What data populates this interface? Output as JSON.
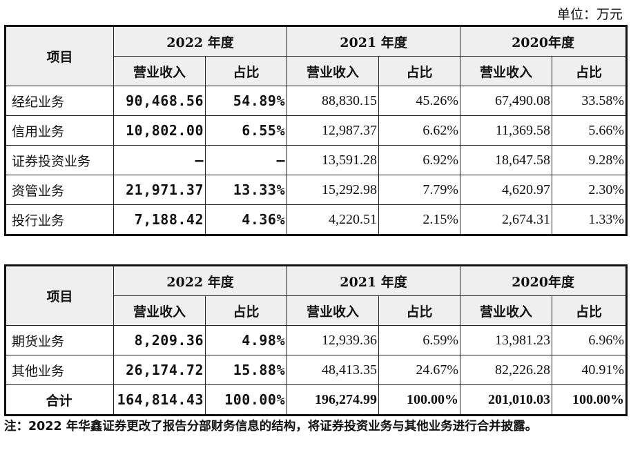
{
  "unit_label": "单位：万元",
  "header": {
    "item": "项目",
    "years": [
      "2022 年度",
      "2021 年度",
      "2020年度"
    ],
    "revenue": "营业收入",
    "ratio": "占比"
  },
  "table1_rows": [
    {
      "item": "经纪业务",
      "v": [
        "90,468.56",
        "54.89%",
        "88,830.15",
        "45.26%",
        "67,490.08",
        "33.58%"
      ]
    },
    {
      "item": "信用业务",
      "v": [
        "10,802.00",
        "6.55%",
        "12,987.37",
        "6.62%",
        "11,369.58",
        "5.66%"
      ]
    },
    {
      "item": "证券投资业务",
      "v": [
        "–",
        "–",
        "13,591.28",
        "6.92%",
        "18,647.58",
        "9.28%"
      ]
    },
    {
      "item": "资管业务",
      "v": [
        "21,971.37",
        "13.33%",
        "15,292.98",
        "7.79%",
        "4,620.97",
        "2.30%"
      ]
    },
    {
      "item": "投行业务",
      "v": [
        "7,188.42",
        "4.36%",
        "4,220.51",
        "2.15%",
        "2,674.31",
        "1.33%"
      ]
    }
  ],
  "table2_rows": [
    {
      "item": "期货业务",
      "v": [
        "8,209.36",
        "4.98%",
        "12,939.36",
        "6.59%",
        "13,981.23",
        "6.96%"
      ]
    },
    {
      "item": "其他业务",
      "v": [
        "26,174.72",
        "15.88%",
        "48,413.35",
        "24.67%",
        "82,226.28",
        "40.91%"
      ]
    }
  ],
  "total_row": {
    "item": "合计",
    "v": [
      "164,814.43",
      "100.00%",
      "196,274.99",
      "100.00%",
      "201,010.03",
      "100.00%"
    ]
  },
  "note": "注：2022 年华鑫证券更改了报告分部财务信息的结构，将证券投资业务与其他业务进行合并披露。"
}
